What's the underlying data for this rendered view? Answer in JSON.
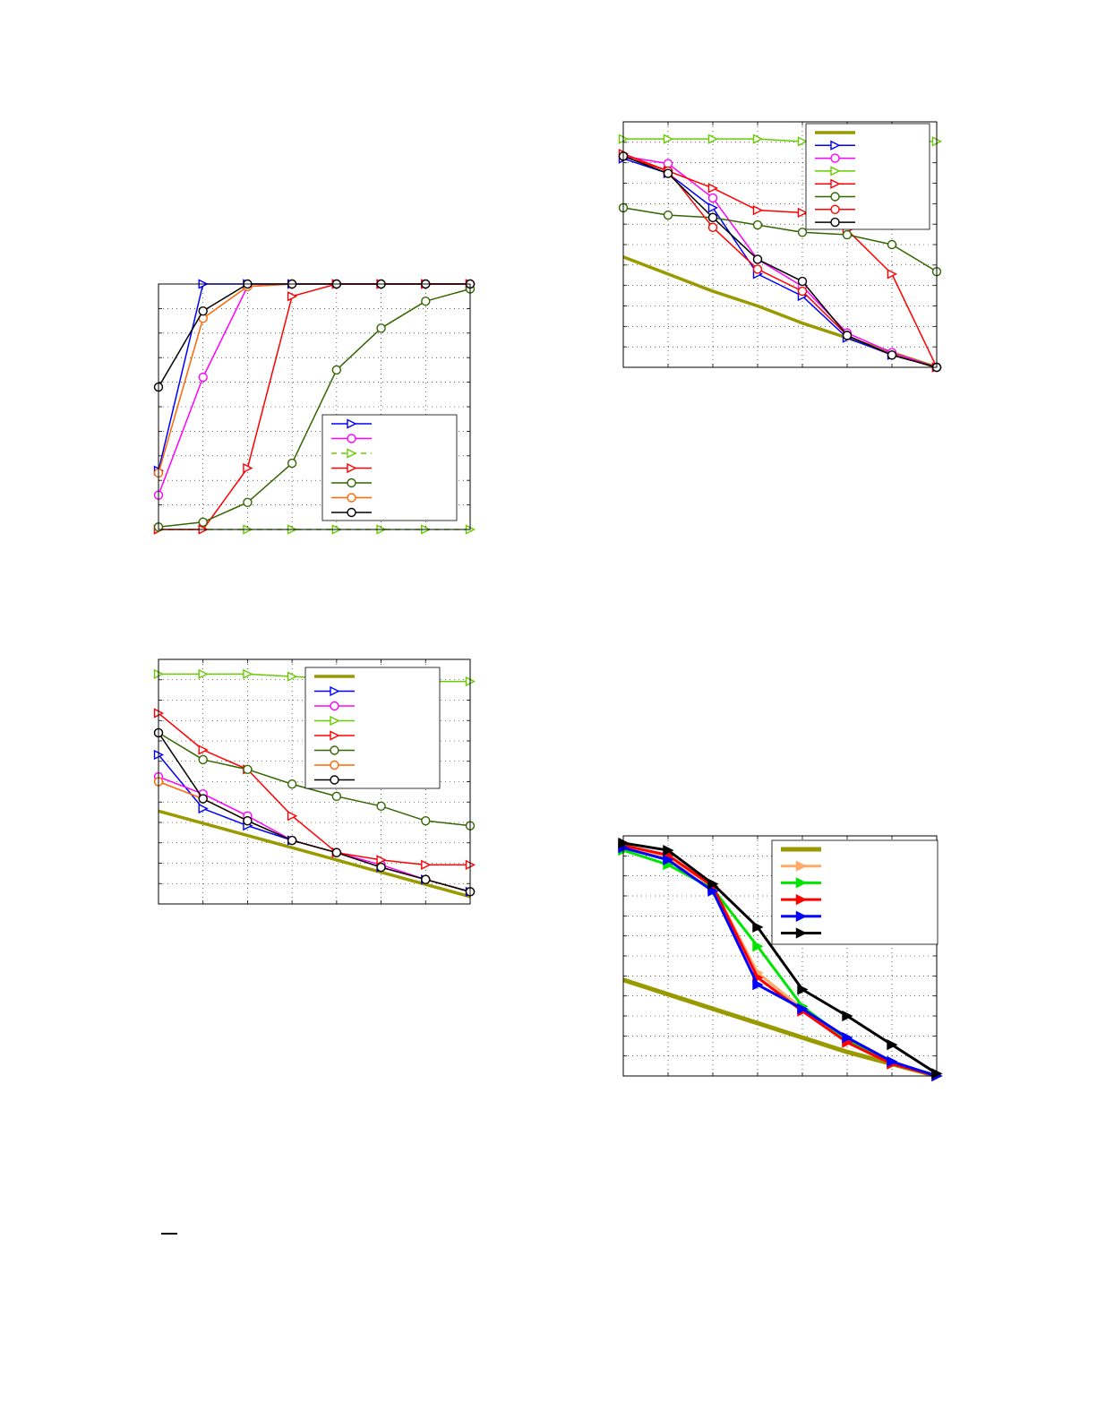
{
  "chart_data": [
    {
      "type": "line",
      "title": "",
      "xlabel": "",
      "ylabel": "",
      "grid": true,
      "legend_position": "bottom-right",
      "xlim": [
        0,
        7
      ],
      "ylim": [
        0,
        1
      ],
      "x": [
        0,
        1,
        2,
        3,
        4,
        5,
        6,
        7
      ],
      "series": [
        {
          "color": "#0000ff",
          "marker": "triangle-right",
          "dash": "",
          "values": [
            0.24,
            1.0,
            1.0,
            1.0,
            1.0,
            1.0,
            1.0,
            1.0
          ]
        },
        {
          "color": "#ff00ff",
          "marker": "circle",
          "dash": "",
          "values": [
            0.14,
            0.62,
            0.99,
            1.0,
            1.0,
            1.0,
            1.0,
            1.0
          ]
        },
        {
          "color": "#66cc00",
          "marker": "triangle-right",
          "dash": "6,5",
          "values": [
            0.0,
            0.0,
            0.0,
            0.0,
            0.0,
            0.0,
            0.0,
            0.0
          ]
        },
        {
          "color": "#ff0000",
          "marker": "triangle-right",
          "dash": "",
          "values": [
            0.0,
            0.0,
            0.25,
            0.95,
            1.0,
            1.0,
            1.0,
            1.0
          ]
        },
        {
          "color": "#336600",
          "marker": "circle",
          "dash": "",
          "values": [
            0.01,
            0.03,
            0.11,
            0.27,
            0.65,
            0.82,
            0.93,
            0.98
          ]
        },
        {
          "color": "#ff6600",
          "marker": "circle",
          "dash": "",
          "values": [
            0.23,
            0.86,
            0.99,
            1.0,
            1.0,
            1.0,
            1.0,
            1.0
          ]
        },
        {
          "color": "#000000",
          "marker": "circle",
          "dash": "",
          "values": [
            0.58,
            0.89,
            1.0,
            1.0,
            1.0,
            1.0,
            1.0,
            1.0
          ]
        }
      ]
    },
    {
      "type": "line",
      "title": "",
      "xlabel": "",
      "ylabel": "",
      "grid": true,
      "legend_position": "top-right",
      "xlim": [
        0,
        7
      ],
      "ylim": [
        0,
        1
      ],
      "x": [
        0,
        1,
        2,
        3,
        4,
        5,
        6,
        7
      ],
      "series": [
        {
          "color": "#999900",
          "marker": "none",
          "width": 3.5,
          "values": [
            0.38,
            0.33,
            0.28,
            0.23,
            0.18,
            0.13,
            0.08,
            0.03
          ]
        },
        {
          "color": "#0000ff",
          "marker": "triangle-right",
          "values": [
            0.61,
            0.39,
            0.32,
            0.26,
            0.21,
            0.15,
            0.1,
            0.05
          ]
        },
        {
          "color": "#ff00ff",
          "marker": "circle",
          "values": [
            0.52,
            0.45,
            0.36,
            0.26,
            0.21,
            0.16,
            0.1,
            0.05
          ]
        },
        {
          "color": "#66cc00",
          "marker": "triangle-right",
          "values": [
            0.94,
            0.94,
            0.94,
            0.93,
            0.92,
            0.92,
            0.91,
            0.91
          ]
        },
        {
          "color": "#ff0000",
          "marker": "triangle-right",
          "values": [
            0.78,
            0.63,
            0.55,
            0.36,
            0.21,
            0.18,
            0.16,
            0.16
          ]
        },
        {
          "color": "#336600",
          "marker": "circle",
          "values": [
            0.7,
            0.59,
            0.55,
            0.49,
            0.44,
            0.4,
            0.34,
            0.32
          ]
        },
        {
          "color": "#ff6600",
          "marker": "circle",
          "values": [
            0.5,
            0.43,
            0.34,
            0.26,
            0.21,
            0.15,
            0.1,
            0.05
          ]
        },
        {
          "color": "#000000",
          "marker": "circle",
          "values": [
            0.7,
            0.43,
            0.34,
            0.26,
            0.21,
            0.15,
            0.1,
            0.05
          ]
        }
      ]
    },
    {
      "type": "line",
      "title": "",
      "xlabel": "",
      "ylabel": "",
      "grid": true,
      "legend_position": "top-right",
      "xlim": [
        0,
        7
      ],
      "ylim": [
        0,
        1
      ],
      "x": [
        0,
        1,
        2,
        3,
        4,
        5,
        6,
        7
      ],
      "series": [
        {
          "color": "#999900",
          "marker": "none",
          "width": 3.5,
          "values": [
            0.45,
            0.38,
            0.31,
            0.25,
            0.18,
            0.12,
            0.06,
            0.0
          ]
        },
        {
          "color": "#0000ff",
          "marker": "triangle-right",
          "values": [
            0.85,
            0.79,
            0.65,
            0.38,
            0.29,
            0.12,
            0.05,
            0.0
          ]
        },
        {
          "color": "#ff00ff",
          "marker": "circle",
          "values": [
            0.86,
            0.83,
            0.69,
            0.44,
            0.33,
            0.14,
            0.06,
            0.0
          ]
        },
        {
          "color": "#66cc00",
          "marker": "triangle-right",
          "values": [
            0.93,
            0.93,
            0.93,
            0.93,
            0.92,
            0.92,
            0.92,
            0.92
          ]
        },
        {
          "color": "#ff0000",
          "marker": "triangle-right",
          "values": [
            0.87,
            0.8,
            0.73,
            0.64,
            0.63,
            0.56,
            0.38,
            0.0
          ]
        },
        {
          "color": "#336600",
          "marker": "circle",
          "values": [
            0.65,
            0.62,
            0.61,
            0.58,
            0.55,
            0.54,
            0.5,
            0.39
          ]
        },
        {
          "color": "#ff0000",
          "marker": "circle",
          "values": [
            0.86,
            0.8,
            0.57,
            0.4,
            0.31,
            0.13,
            0.05,
            0.0
          ]
        },
        {
          "color": "#000000",
          "marker": "circle",
          "values": [
            0.86,
            0.79,
            0.61,
            0.44,
            0.35,
            0.13,
            0.05,
            0.0
          ]
        }
      ]
    },
    {
      "type": "line",
      "title": "",
      "xlabel": "",
      "ylabel": "",
      "grid": true,
      "legend_position": "top-right",
      "xlim": [
        0,
        7
      ],
      "ylim": [
        0,
        1
      ],
      "x": [
        0,
        1,
        2,
        3,
        4,
        5,
        6,
        7
      ],
      "series": [
        {
          "color": "#999900",
          "marker": "none",
          "width": 5,
          "values": [
            0.4,
            0.34,
            0.28,
            0.22,
            0.16,
            0.1,
            0.05,
            0.0
          ]
        },
        {
          "color": "#ffaa66",
          "marker": "triangle-right",
          "width": 3,
          "values": [
            0.96,
            0.91,
            0.79,
            0.43,
            0.28,
            0.14,
            0.05,
            0.0
          ]
        },
        {
          "color": "#00e600",
          "marker": "triangle-right",
          "width": 3,
          "values": [
            0.94,
            0.88,
            0.78,
            0.54,
            0.29,
            0.15,
            0.05,
            0.0
          ]
        },
        {
          "color": "#ff0000",
          "marker": "triangle-right",
          "width": 3,
          "values": [
            0.96,
            0.92,
            0.79,
            0.41,
            0.27,
            0.14,
            0.05,
            0.0
          ]
        },
        {
          "color": "#0000ff",
          "marker": "triangle-right",
          "width": 3,
          "values": [
            0.95,
            0.9,
            0.77,
            0.38,
            0.28,
            0.16,
            0.06,
            0.0
          ]
        },
        {
          "color": "#000000",
          "marker": "triangle-right",
          "width": 3,
          "values": [
            0.97,
            0.94,
            0.8,
            0.62,
            0.36,
            0.25,
            0.13,
            0.01
          ]
        }
      ]
    }
  ]
}
